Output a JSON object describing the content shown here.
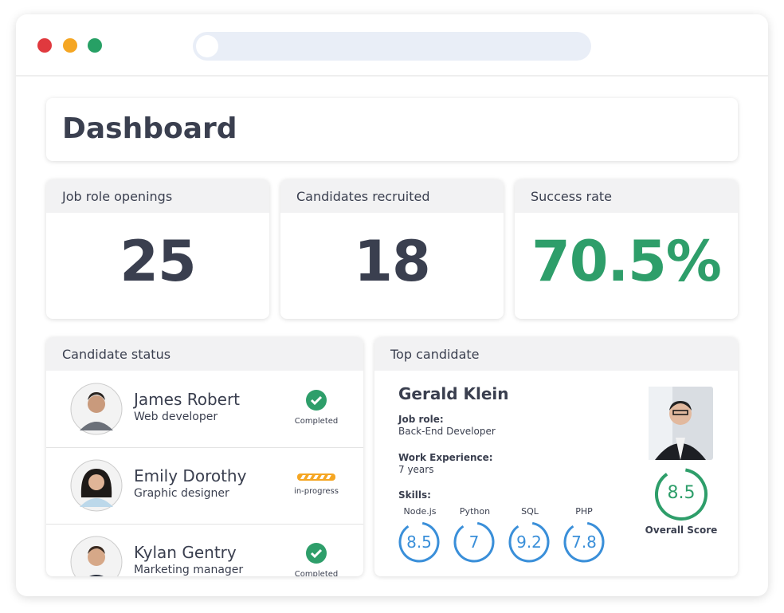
{
  "header": {
    "title": "Dashboard"
  },
  "stats": [
    {
      "label": "Job role openings",
      "value": 25
    },
    {
      "label": "Candidates recruited",
      "value": 18
    },
    {
      "label": "Success rate",
      "value": "70.5%"
    }
  ],
  "candidate_status": {
    "title": "Candidate status",
    "candidates": [
      {
        "name": "James Robert",
        "role": "Web developer",
        "status": "Completed"
      },
      {
        "name": "Emily Dorothy",
        "role": "Graphic designer",
        "status": "in-progress"
      },
      {
        "name": "Kylan Gentry",
        "role": "Marketing manager",
        "status": "Completed"
      }
    ]
  },
  "top_candidate": {
    "title": "Top candidate",
    "name": "Gerald Klein",
    "fields": [
      {
        "label": "Job role:",
        "value": "Back-End Developer"
      },
      {
        "label": "Work Experience:",
        "value": "7 years"
      }
    ],
    "skills_label": "Skills:",
    "skills": [
      {
        "name": "Node.js",
        "score": 8.5
      },
      {
        "name": "Python",
        "score": 7
      },
      {
        "name": "SQL",
        "score": 9.2
      },
      {
        "name": "PHP",
        "score": 7.8
      }
    ],
    "overall_score": 8.5,
    "overall_label": "Overall Score"
  }
}
